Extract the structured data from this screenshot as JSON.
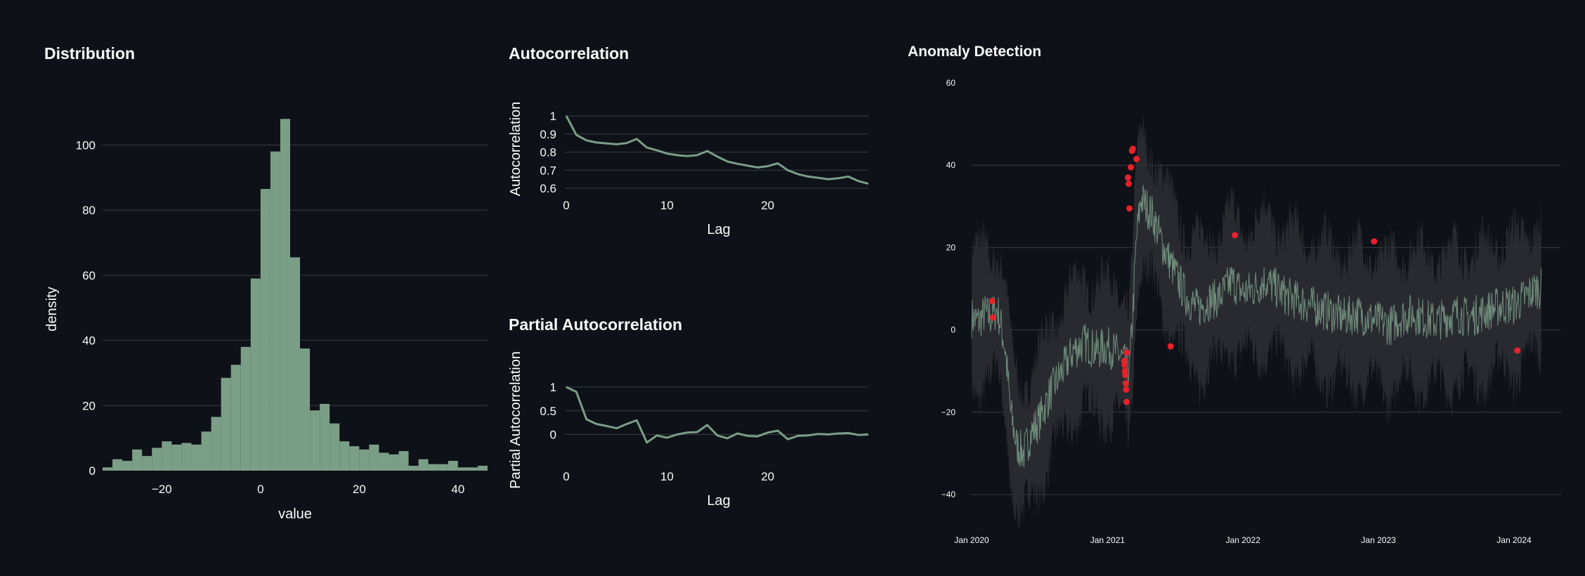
{
  "titles": {
    "distribution": "Distribution",
    "acf": "Autocorrelation",
    "pacf": "Partial Autocorrelation",
    "anomaly": "Anomaly Detection"
  },
  "colors": {
    "series": "#7b9e87",
    "anomaly": "#e8222a",
    "band": "#2c2e33",
    "grid": "#3a3d44",
    "background": "#0e1117"
  },
  "chart_data": [
    {
      "id": "distribution",
      "type": "bar",
      "title": "Distribution",
      "xlabel": "value",
      "ylabel": "density",
      "xlim": [
        -32,
        46
      ],
      "ylim": [
        0,
        110
      ],
      "bin_width": 2,
      "xticks": [
        -20,
        0,
        20,
        40
      ],
      "yticks": [
        0,
        20,
        40,
        60,
        80,
        100
      ],
      "bins": [
        {
          "x0": -32,
          "y": 1
        },
        {
          "x0": -30,
          "y": 3.5
        },
        {
          "x0": -28,
          "y": 3
        },
        {
          "x0": -26,
          "y": 6.5
        },
        {
          "x0": -24,
          "y": 4.5
        },
        {
          "x0": -22,
          "y": 7
        },
        {
          "x0": -20,
          "y": 9
        },
        {
          "x0": -18,
          "y": 8
        },
        {
          "x0": -16,
          "y": 8.5
        },
        {
          "x0": -14,
          "y": 8
        },
        {
          "x0": -12,
          "y": 12
        },
        {
          "x0": -10,
          "y": 16.5
        },
        {
          "x0": -8,
          "y": 28.5
        },
        {
          "x0": -6,
          "y": 32.5
        },
        {
          "x0": -4,
          "y": 38
        },
        {
          "x0": -2,
          "y": 59
        },
        {
          "x0": 0,
          "y": 86.5
        },
        {
          "x0": 2,
          "y": 98
        },
        {
          "x0": 4,
          "y": 108
        },
        {
          "x0": 6,
          "y": 65.5
        },
        {
          "x0": 8,
          "y": 37.5
        },
        {
          "x0": 10,
          "y": 18.5
        },
        {
          "x0": 12,
          "y": 20.5
        },
        {
          "x0": 14,
          "y": 14.5
        },
        {
          "x0": 16,
          "y": 9
        },
        {
          "x0": 18,
          "y": 7.5
        },
        {
          "x0": 20,
          "y": 6.5
        },
        {
          "x0": 22,
          "y": 8
        },
        {
          "x0": 24,
          "y": 5.5
        },
        {
          "x0": 26,
          "y": 5
        },
        {
          "x0": 28,
          "y": 6
        },
        {
          "x0": 30,
          "y": 1.5
        },
        {
          "x0": 32,
          "y": 3.5
        },
        {
          "x0": 34,
          "y": 2
        },
        {
          "x0": 36,
          "y": 2
        },
        {
          "x0": 38,
          "y": 3
        },
        {
          "x0": 40,
          "y": 1
        },
        {
          "x0": 42,
          "y": 1
        },
        {
          "x0": 44,
          "y": 1.5
        }
      ]
    },
    {
      "id": "acf",
      "type": "line",
      "title": "Autocorrelation",
      "xlabel": "Lag",
      "ylabel": "Autocorrelation",
      "xlim": [
        0,
        30
      ],
      "ylim": [
        0.6,
        1
      ],
      "xticks": [
        0,
        10,
        20
      ],
      "yticks": [
        0.6,
        0.7,
        0.8,
        0.9,
        1
      ],
      "ytick_labels": [
        "0.6",
        "0.7",
        "0.8",
        "0.9",
        "1"
      ],
      "x": [
        0,
        1,
        2,
        3,
        4,
        5,
        6,
        7,
        8,
        9,
        10,
        11,
        12,
        13,
        14,
        15,
        16,
        17,
        18,
        19,
        20,
        21,
        22,
        23,
        24,
        25,
        26,
        27,
        28,
        29,
        30
      ],
      "y": [
        1.0,
        0.895,
        0.865,
        0.853,
        0.848,
        0.843,
        0.85,
        0.873,
        0.825,
        0.81,
        0.792,
        0.783,
        0.778,
        0.783,
        0.806,
        0.775,
        0.748,
        0.735,
        0.725,
        0.715,
        0.722,
        0.738,
        0.7,
        0.678,
        0.665,
        0.658,
        0.65,
        0.655,
        0.665,
        0.64,
        0.625
      ]
    },
    {
      "id": "pacf",
      "type": "line",
      "title": "Partial Autocorrelation",
      "xlabel": "Lag",
      "ylabel": "Partial Autocorrelation",
      "xlim": [
        0,
        30
      ],
      "ylim": [
        -0.2,
        1
      ],
      "xticks": [
        0,
        10,
        20
      ],
      "yticks": [
        0,
        0.5,
        1
      ],
      "ytick_labels": [
        "0",
        "0.5",
        "1"
      ],
      "x": [
        0,
        1,
        2,
        3,
        4,
        5,
        6,
        7,
        8,
        9,
        10,
        11,
        12,
        13,
        14,
        15,
        16,
        17,
        18,
        19,
        20,
        21,
        22,
        23,
        24,
        25,
        26,
        27,
        28,
        29,
        30
      ],
      "y": [
        1.0,
        0.9,
        0.32,
        0.22,
        0.18,
        0.13,
        0.22,
        0.3,
        -0.17,
        -0.02,
        -0.07,
        0.0,
        0.04,
        0.05,
        0.2,
        -0.02,
        -0.08,
        0.02,
        -0.03,
        -0.04,
        0.04,
        0.08,
        -0.1,
        -0.03,
        -0.02,
        0.01,
        0.0,
        0.02,
        0.03,
        -0.01,
        0.0
      ]
    },
    {
      "id": "anomaly",
      "type": "line",
      "title": "Anomaly Detection",
      "xlabel": "",
      "ylabel": "",
      "x_start": "2020-01-01",
      "x_end": "2024-03-15",
      "ylim": [
        -40,
        60
      ],
      "yticks": [
        -40,
        -20,
        0,
        20,
        40,
        60
      ],
      "xticks": [
        "2020-01-01",
        "2021-01-01",
        "2022-01-01",
        "2023-01-01",
        "2024-01-01"
      ],
      "xtick_labels": [
        "Jan 2020",
        "Jan 2021",
        "Jan 2022",
        "Jan 2023",
        "Jan 2024"
      ],
      "series_points": [
        [
          "2020-01-01",
          3
        ],
        [
          "2020-01-20",
          2
        ],
        [
          "2020-02-05",
          4
        ],
        [
          "2020-02-20",
          3
        ],
        [
          "2020-03-10",
          5
        ],
        [
          "2020-03-20",
          1
        ],
        [
          "2020-04-01",
          -5
        ],
        [
          "2020-04-15",
          -20
        ],
        [
          "2020-05-01",
          -28
        ],
        [
          "2020-05-20",
          -30
        ],
        [
          "2020-06-10",
          -25
        ],
        [
          "2020-07-01",
          -22
        ],
        [
          "2020-08-01",
          -15
        ],
        [
          "2020-09-01",
          -10
        ],
        [
          "2020-10-01",
          -5
        ],
        [
          "2020-11-01",
          -3
        ],
        [
          "2020-12-01",
          -5
        ],
        [
          "2021-01-01",
          -4
        ],
        [
          "2021-02-01",
          -6
        ],
        [
          "2021-03-01",
          -10
        ],
        [
          "2021-03-10",
          4
        ],
        [
          "2021-03-20",
          22
        ],
        [
          "2021-04-01",
          32
        ],
        [
          "2021-04-15",
          30
        ],
        [
          "2021-05-01",
          28
        ],
        [
          "2021-06-01",
          20
        ],
        [
          "2021-07-01",
          14
        ],
        [
          "2021-08-01",
          8
        ],
        [
          "2021-09-01",
          5
        ],
        [
          "2021-10-01",
          7
        ],
        [
          "2021-11-01",
          8
        ],
        [
          "2021-12-01",
          12
        ],
        [
          "2022-01-01",
          9
        ],
        [
          "2022-02-01",
          10
        ],
        [
          "2022-03-01",
          12
        ],
        [
          "2022-04-01",
          10
        ],
        [
          "2022-05-01",
          8
        ],
        [
          "2022-06-01",
          7
        ],
        [
          "2022-07-01",
          6
        ],
        [
          "2022-08-01",
          5
        ],
        [
          "2022-09-01",
          4
        ],
        [
          "2022-10-01",
          3
        ],
        [
          "2022-11-01",
          4
        ],
        [
          "2022-12-01",
          3
        ],
        [
          "2023-01-01",
          2
        ],
        [
          "2023-02-01",
          1
        ],
        [
          "2023-03-01",
          3
        ],
        [
          "2023-04-01",
          4
        ],
        [
          "2023-05-01",
          3
        ],
        [
          "2023-06-01",
          2
        ],
        [
          "2023-07-01",
          3
        ],
        [
          "2023-08-01",
          4
        ],
        [
          "2023-09-01",
          3
        ],
        [
          "2023-10-01",
          4
        ],
        [
          "2023-11-01",
          5
        ],
        [
          "2023-12-01",
          6
        ],
        [
          "2024-01-01",
          6
        ],
        [
          "2024-02-01",
          8
        ],
        [
          "2024-03-01",
          10
        ]
      ],
      "anomalies": [
        [
          "2020-02-25",
          7
        ],
        [
          "2020-02-27",
          3
        ],
        [
          "2021-02-15",
          -7.5
        ],
        [
          "2021-02-16",
          -8.5
        ],
        [
          "2021-02-17",
          -10
        ],
        [
          "2021-02-18",
          -11
        ],
        [
          "2021-02-19",
          -13
        ],
        [
          "2021-02-20",
          -14.5
        ],
        [
          "2021-02-21",
          -17.5
        ],
        [
          "2021-02-22",
          -5.5
        ],
        [
          "2021-02-25",
          37
        ],
        [
          "2021-02-27",
          35.5
        ],
        [
          "2021-03-01",
          29.5
        ],
        [
          "2021-03-05",
          39.5
        ],
        [
          "2021-03-08",
          43.5
        ],
        [
          "2021-03-10",
          44
        ],
        [
          "2021-03-20",
          41.5
        ],
        [
          "2021-06-20",
          -4
        ],
        [
          "2021-12-10",
          23
        ],
        [
          "2022-12-20",
          21.5
        ],
        [
          "2024-01-10",
          -5
        ]
      ]
    }
  ]
}
